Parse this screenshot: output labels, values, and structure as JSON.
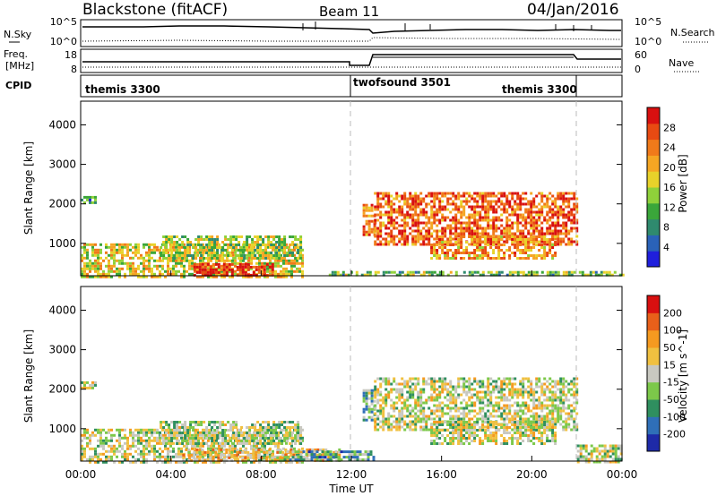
{
  "header": {
    "station": "Blackstone (fitACF)",
    "beam": "Beam 11",
    "date": "04/Jan/2016"
  },
  "left_labels": {
    "nsky": "N.Sky",
    "freq_top": "Freq.",
    "freq_unit": "[MHz]",
    "cpid": "CPID"
  },
  "right_labels": {
    "nsearch": "N.Search",
    "nave": "Nave"
  },
  "noise_panel": {
    "left_ticks": [
      "10^5",
      "10^0"
    ],
    "right_ticks": [
      "10^5",
      "10^0"
    ]
  },
  "freq_panel": {
    "left_ticks": [
      "18",
      "8"
    ],
    "right_ticks": [
      "60",
      "0"
    ]
  },
  "cpid_panel": {
    "segments": [
      {
        "label": "themis 3300"
      },
      {
        "label": "twofsound 3501"
      },
      {
        "label": "themis 3300"
      }
    ]
  },
  "colors": {
    "power_scale": [
      "#1f1fdc",
      "#2a62b8",
      "#2f8a6e",
      "#3aa63a",
      "#8fd13a",
      "#e8d22a",
      "#f5a623",
      "#f07a1a",
      "#e84a12",
      "#d81010"
    ],
    "velocity_scale": [
      "#1e2aa8",
      "#2f6fb8",
      "#2f8f5f",
      "#7cc84a",
      "#c8c8c0",
      "#f0c040",
      "#f59a20",
      "#e8601a",
      "#d81010"
    ]
  },
  "chart_data": [
    {
      "type": "heatmap",
      "title": "",
      "xlabel": "",
      "ylabel": "Slant Range [km]",
      "y_ticks": [
        "1000",
        "2000",
        "3000",
        "4000"
      ],
      "ylim": [
        180,
        4600
      ],
      "colorbar": {
        "label": "Power [dB]",
        "ticks": [
          "4",
          "8",
          "12",
          "16",
          "20",
          "24",
          "28"
        ],
        "range": [
          0,
          32
        ]
      },
      "echo_regions": [
        {
          "t_start": 0.0,
          "t_end": 0.6,
          "r_min": 2000,
          "r_max": 2200,
          "level": 0.3
        },
        {
          "t_start": 0.0,
          "t_end": 9.8,
          "r_min": 180,
          "r_max": 1000,
          "level": 0.55
        },
        {
          "t_start": 3.5,
          "t_end": 9.8,
          "r_min": 600,
          "r_max": 1200,
          "level": 0.45
        },
        {
          "t_start": 5.0,
          "t_end": 8.5,
          "r_min": 180,
          "r_max": 500,
          "level": 0.95
        },
        {
          "t_start": 12.5,
          "t_end": 13.0,
          "r_min": 1200,
          "r_max": 2000,
          "level": 0.75
        },
        {
          "t_start": 13.0,
          "t_end": 22.0,
          "r_min": 1000,
          "r_max": 2300,
          "level": 0.8
        },
        {
          "t_start": 15.5,
          "t_end": 21.0,
          "r_min": 600,
          "r_max": 1200,
          "level": 0.7
        },
        {
          "t_start": 11.0,
          "t_end": 24.0,
          "r_min": 180,
          "r_max": 300,
          "level": 0.4
        }
      ]
    },
    {
      "type": "heatmap",
      "title": "",
      "xlabel": "Time UT",
      "ylabel": "Slant Range [km]",
      "x_ticks": [
        "00:00",
        "04:00",
        "08:00",
        "12:00",
        "16:00",
        "20:00",
        "00:00"
      ],
      "xlim": [
        0,
        24
      ],
      "y_ticks": [
        "1000",
        "2000",
        "3000",
        "4000"
      ],
      "ylim": [
        180,
        4600
      ],
      "colorbar": {
        "label": "Velocity [m s^-1]",
        "ticks": [
          "200",
          "100",
          "50",
          "15",
          "-15",
          "-50",
          "-100",
          "-200"
        ],
        "range": [
          -250,
          250
        ]
      },
      "echo_regions": [
        {
          "t_start": 0.0,
          "t_end": 0.6,
          "r_min": 2000,
          "r_max": 2200,
          "level": 0.5
        },
        {
          "t_start": 0.0,
          "t_end": 9.8,
          "r_min": 180,
          "r_max": 1000,
          "level": 0.5
        },
        {
          "t_start": 3.5,
          "t_end": 9.8,
          "r_min": 600,
          "r_max": 1200,
          "level": 0.45
        },
        {
          "t_start": 4.5,
          "t_end": 11.5,
          "r_min": 180,
          "r_max": 500,
          "level": 0.62
        },
        {
          "t_start": 9.0,
          "t_end": 13.0,
          "r_min": 180,
          "r_max": 450,
          "level": 0.3
        },
        {
          "t_start": 12.5,
          "t_end": 13.0,
          "r_min": 1200,
          "r_max": 2000,
          "level": 0.35
        },
        {
          "t_start": 13.0,
          "t_end": 22.0,
          "r_min": 1000,
          "r_max": 2300,
          "level": 0.5
        },
        {
          "t_start": 15.5,
          "t_end": 21.0,
          "r_min": 600,
          "r_max": 1200,
          "level": 0.5
        },
        {
          "t_start": 22.0,
          "t_end": 24.0,
          "r_min": 180,
          "r_max": 600,
          "level": 0.5
        }
      ]
    }
  ]
}
